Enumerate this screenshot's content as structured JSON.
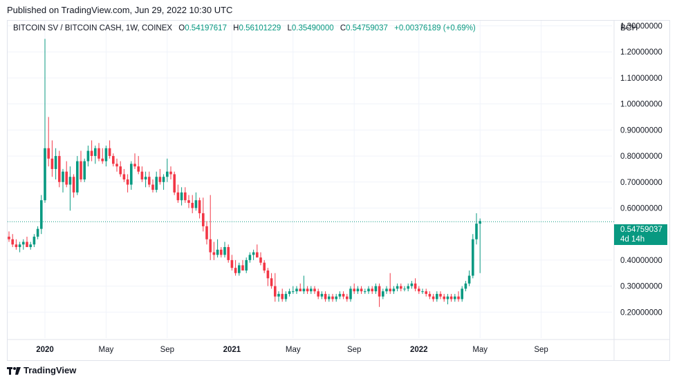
{
  "header": {
    "published": "Published on TradingView.com, Jun 29, 2022 10:30 UTC"
  },
  "legend": {
    "symbol": "BITCOIN SV / BITCOIN CASH, 1W, COINEX",
    "o_label": "O",
    "o_value": "0.54197617",
    "h_label": "H",
    "h_value": "0.56101229",
    "l_label": "L",
    "l_value": "0.35490000",
    "c_label": "C",
    "c_value": "0.54759037",
    "change": "+0.00376189 (+0.69%)"
  },
  "axis": {
    "unit": "BCH"
  },
  "last_price": {
    "value": "0.54759037",
    "countdown": "4d 14h"
  },
  "footer": {
    "brand": "TradingView"
  },
  "colors": {
    "up": "#089981",
    "down": "#f23645",
    "grid": "#f0f3fa",
    "last_line": "#089981"
  },
  "chart_data": {
    "type": "candlestick",
    "title": "BITCOIN SV / BITCOIN CASH, 1W, COINEX",
    "ylabel": "BCH",
    "ylim": [
      0.1,
      1.32
    ],
    "y_ticks": [
      0.2,
      0.3,
      0.4,
      0.6,
      0.7,
      0.8,
      0.9,
      1.0,
      1.1,
      1.2,
      1.3
    ],
    "y_tick_labels": [
      "0.20000000",
      "0.30000000",
      "0.40000000",
      "0.60000000",
      "0.70000000",
      "0.80000000",
      "0.90000000",
      "1.00000000",
      "1.10000000",
      "1.20000000",
      "1.30000000"
    ],
    "x_ticks": [
      {
        "label": "2020",
        "bold": true,
        "week": 10
      },
      {
        "label": "May",
        "bold": false,
        "week": 27
      },
      {
        "label": "Sep",
        "bold": false,
        "week": 44
      },
      {
        "label": "2021",
        "bold": true,
        "week": 62
      },
      {
        "label": "May",
        "bold": false,
        "week": 79
      },
      {
        "label": "Sep",
        "bold": false,
        "week": 96
      },
      {
        "label": "2022",
        "bold": true,
        "week": 114
      },
      {
        "label": "May",
        "bold": false,
        "week": 131
      },
      {
        "label": "Sep",
        "bold": false,
        "week": 148
      }
    ],
    "last_value": 0.54759037,
    "candles": [
      [
        0.49,
        0.51,
        0.47,
        0.48
      ],
      [
        0.48,
        0.5,
        0.45,
        0.46
      ],
      [
        0.46,
        0.48,
        0.44,
        0.45
      ],
      [
        0.45,
        0.47,
        0.43,
        0.46
      ],
      [
        0.46,
        0.48,
        0.44,
        0.47
      ],
      [
        0.47,
        0.49,
        0.45,
        0.45
      ],
      [
        0.45,
        0.47,
        0.44,
        0.46
      ],
      [
        0.46,
        0.5,
        0.45,
        0.49
      ],
      [
        0.49,
        0.53,
        0.48,
        0.52
      ],
      [
        0.52,
        0.65,
        0.5,
        0.63
      ],
      [
        0.63,
        1.25,
        0.62,
        0.83
      ],
      [
        0.83,
        0.95,
        0.76,
        0.79
      ],
      [
        0.79,
        0.86,
        0.72,
        0.75
      ],
      [
        0.75,
        0.83,
        0.71,
        0.8
      ],
      [
        0.8,
        0.82,
        0.68,
        0.7
      ],
      [
        0.7,
        0.75,
        0.66,
        0.74
      ],
      [
        0.74,
        0.78,
        0.68,
        0.69
      ],
      [
        0.69,
        0.76,
        0.59,
        0.72
      ],
      [
        0.72,
        0.73,
        0.64,
        0.66
      ],
      [
        0.66,
        0.8,
        0.65,
        0.78
      ],
      [
        0.78,
        0.82,
        0.7,
        0.71
      ],
      [
        0.71,
        0.79,
        0.7,
        0.78
      ],
      [
        0.78,
        0.84,
        0.76,
        0.82
      ],
      [
        0.82,
        0.86,
        0.78,
        0.8
      ],
      [
        0.8,
        0.84,
        0.77,
        0.83
      ],
      [
        0.83,
        0.85,
        0.78,
        0.79
      ],
      [
        0.79,
        0.83,
        0.77,
        0.78
      ],
      [
        0.78,
        0.84,
        0.76,
        0.83
      ],
      [
        0.83,
        0.86,
        0.79,
        0.8
      ],
      [
        0.8,
        0.81,
        0.76,
        0.77
      ],
      [
        0.77,
        0.79,
        0.74,
        0.76
      ],
      [
        0.76,
        0.78,
        0.72,
        0.73
      ],
      [
        0.73,
        0.75,
        0.7,
        0.71
      ],
      [
        0.71,
        0.73,
        0.66,
        0.69
      ],
      [
        0.69,
        0.78,
        0.67,
        0.77
      ],
      [
        0.77,
        0.81,
        0.75,
        0.76
      ],
      [
        0.76,
        0.8,
        0.73,
        0.74
      ],
      [
        0.74,
        0.76,
        0.7,
        0.71
      ],
      [
        0.71,
        0.74,
        0.68,
        0.72
      ],
      [
        0.72,
        0.74,
        0.68,
        0.69
      ],
      [
        0.69,
        0.71,
        0.66,
        0.67
      ],
      [
        0.67,
        0.74,
        0.66,
        0.72
      ],
      [
        0.72,
        0.75,
        0.69,
        0.7
      ],
      [
        0.7,
        0.73,
        0.67,
        0.72
      ],
      [
        0.72,
        0.79,
        0.7,
        0.74
      ],
      [
        0.74,
        0.76,
        0.71,
        0.73
      ],
      [
        0.73,
        0.74,
        0.65,
        0.66
      ],
      [
        0.66,
        0.69,
        0.62,
        0.63
      ],
      [
        0.63,
        0.68,
        0.61,
        0.66
      ],
      [
        0.66,
        0.68,
        0.62,
        0.63
      ],
      [
        0.63,
        0.65,
        0.6,
        0.62
      ],
      [
        0.62,
        0.65,
        0.58,
        0.6
      ],
      [
        0.6,
        0.66,
        0.59,
        0.63
      ],
      [
        0.63,
        0.64,
        0.56,
        0.58
      ],
      [
        0.58,
        0.64,
        0.51,
        0.53
      ],
      [
        0.53,
        0.55,
        0.46,
        0.48
      ],
      [
        0.48,
        0.65,
        0.4,
        0.43
      ],
      [
        0.43,
        0.47,
        0.4,
        0.42
      ],
      [
        0.42,
        0.48,
        0.41,
        0.44
      ],
      [
        0.44,
        0.45,
        0.41,
        0.42
      ],
      [
        0.42,
        0.47,
        0.41,
        0.45
      ],
      [
        0.45,
        0.46,
        0.39,
        0.4
      ],
      [
        0.4,
        0.42,
        0.36,
        0.37
      ],
      [
        0.37,
        0.4,
        0.34,
        0.35
      ],
      [
        0.35,
        0.39,
        0.34,
        0.38
      ],
      [
        0.38,
        0.4,
        0.36,
        0.36
      ],
      [
        0.36,
        0.41,
        0.35,
        0.4
      ],
      [
        0.4,
        0.43,
        0.39,
        0.42
      ],
      [
        0.42,
        0.44,
        0.4,
        0.43
      ],
      [
        0.43,
        0.46,
        0.41,
        0.41
      ],
      [
        0.41,
        0.43,
        0.38,
        0.39
      ],
      [
        0.39,
        0.4,
        0.35,
        0.36
      ],
      [
        0.36,
        0.37,
        0.3,
        0.33
      ],
      [
        0.33,
        0.35,
        0.29,
        0.3
      ],
      [
        0.3,
        0.35,
        0.24,
        0.26
      ],
      [
        0.26,
        0.28,
        0.24,
        0.27
      ],
      [
        0.27,
        0.29,
        0.24,
        0.25
      ],
      [
        0.25,
        0.28,
        0.24,
        0.27
      ],
      [
        0.27,
        0.29,
        0.26,
        0.28
      ],
      [
        0.28,
        0.3,
        0.27,
        0.28
      ],
      [
        0.28,
        0.3,
        0.27,
        0.29
      ],
      [
        0.29,
        0.31,
        0.28,
        0.28
      ],
      [
        0.28,
        0.34,
        0.27,
        0.29
      ],
      [
        0.29,
        0.3,
        0.27,
        0.28
      ],
      [
        0.28,
        0.3,
        0.27,
        0.29
      ],
      [
        0.29,
        0.3,
        0.27,
        0.28
      ],
      [
        0.28,
        0.29,
        0.25,
        0.26
      ],
      [
        0.26,
        0.28,
        0.25,
        0.27
      ],
      [
        0.27,
        0.28,
        0.24,
        0.25
      ],
      [
        0.25,
        0.27,
        0.24,
        0.26
      ],
      [
        0.26,
        0.27,
        0.24,
        0.25
      ],
      [
        0.25,
        0.27,
        0.24,
        0.26
      ],
      [
        0.26,
        0.28,
        0.25,
        0.27
      ],
      [
        0.27,
        0.28,
        0.25,
        0.26
      ],
      [
        0.26,
        0.27,
        0.24,
        0.25
      ],
      [
        0.25,
        0.3,
        0.24,
        0.29
      ],
      [
        0.29,
        0.31,
        0.27,
        0.28
      ],
      [
        0.28,
        0.3,
        0.27,
        0.29
      ],
      [
        0.29,
        0.3,
        0.27,
        0.28
      ],
      [
        0.28,
        0.29,
        0.27,
        0.28
      ],
      [
        0.28,
        0.3,
        0.27,
        0.29
      ],
      [
        0.29,
        0.3,
        0.27,
        0.28
      ],
      [
        0.28,
        0.31,
        0.27,
        0.3
      ],
      [
        0.3,
        0.31,
        0.22,
        0.26
      ],
      [
        0.26,
        0.29,
        0.25,
        0.28
      ],
      [
        0.28,
        0.3,
        0.27,
        0.29
      ],
      [
        0.29,
        0.35,
        0.27,
        0.28
      ],
      [
        0.28,
        0.3,
        0.27,
        0.29
      ],
      [
        0.29,
        0.31,
        0.28,
        0.3
      ],
      [
        0.3,
        0.31,
        0.28,
        0.29
      ],
      [
        0.29,
        0.3,
        0.28,
        0.29
      ],
      [
        0.29,
        0.31,
        0.28,
        0.3
      ],
      [
        0.3,
        0.32,
        0.29,
        0.31
      ],
      [
        0.31,
        0.33,
        0.28,
        0.29
      ],
      [
        0.29,
        0.3,
        0.27,
        0.28
      ],
      [
        0.28,
        0.29,
        0.27,
        0.28
      ],
      [
        0.28,
        0.29,
        0.26,
        0.27
      ],
      [
        0.27,
        0.28,
        0.25,
        0.26
      ],
      [
        0.26,
        0.27,
        0.24,
        0.25
      ],
      [
        0.25,
        0.28,
        0.24,
        0.27
      ],
      [
        0.27,
        0.28,
        0.25,
        0.26
      ],
      [
        0.26,
        0.27,
        0.24,
        0.25
      ],
      [
        0.25,
        0.27,
        0.23,
        0.26
      ],
      [
        0.26,
        0.27,
        0.24,
        0.25
      ],
      [
        0.25,
        0.27,
        0.24,
        0.26
      ],
      [
        0.26,
        0.28,
        0.24,
        0.25
      ],
      [
        0.25,
        0.3,
        0.24,
        0.29
      ],
      [
        0.29,
        0.32,
        0.28,
        0.31
      ],
      [
        0.31,
        0.36,
        0.3,
        0.34
      ],
      [
        0.34,
        0.5,
        0.33,
        0.48
      ],
      [
        0.48,
        0.58,
        0.46,
        0.54
      ],
      [
        0.54,
        0.56,
        0.35,
        0.55
      ]
    ]
  }
}
